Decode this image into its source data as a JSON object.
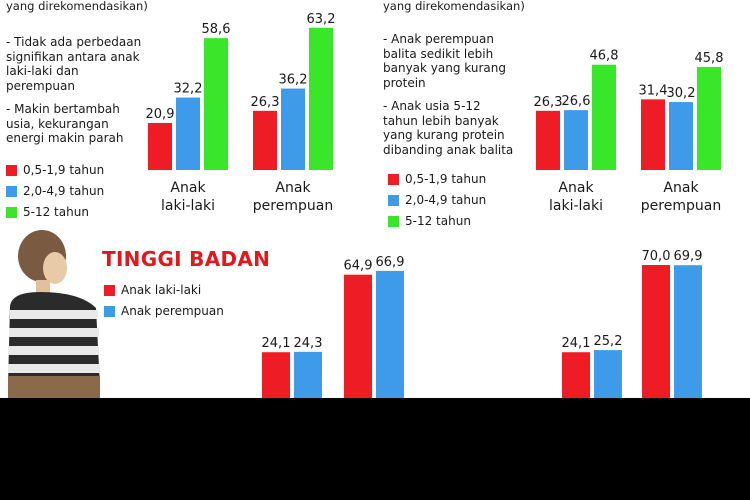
{
  "colors": {
    "red": "#ee1c24",
    "blue": "#3d9bea",
    "green": "#39e62a",
    "heading_red": "#e4161e"
  },
  "energy": {
    "subtitle_fragment": "yang direkomendasikan)",
    "notes": [
      "- Tidak ada perbedaan\nsignifikan antara anak\nlaki-laki dan\nperempuan",
      "- Makin bertambah\nusia, kekurangan\nenergi makin parah"
    ],
    "legend": [
      "0,5-1,9 tahun",
      "2,0-4,9 tahun",
      "5-12 tahun"
    ]
  },
  "protein": {
    "subtitle_fragment": "yang direkomendasikan)",
    "notes": [
      "- Anak perempuan\nbalita sedikit lebih\nbanyak yang kurang\nprotein",
      "- Anak usia 5-12\ntahun lebih banyak\nyang kurang protein\ndibanding anak balita"
    ],
    "legend": [
      "0,5-1,9 tahun",
      "2,0-4,9 tahun",
      "5-12 tahun"
    ]
  },
  "height": {
    "title": "TINGGI BADAN",
    "legend": [
      "Anak laki-laki",
      "Anak perempuan"
    ]
  },
  "chart_data": [
    {
      "id": "energy",
      "type": "bar",
      "categories": [
        "Anak\nlaki-laki",
        "Anak\nperempuan"
      ],
      "series": [
        {
          "name": "0,5-1,9 tahun",
          "values": [
            20.9,
            26.3
          ],
          "labels": [
            "20,9",
            "26,3"
          ]
        },
        {
          "name": "2,0-4,9 tahun",
          "values": [
            32.2,
            36.2
          ],
          "labels": [
            "32,2",
            "36,2"
          ]
        },
        {
          "name": "5-12 tahun",
          "values": [
            58.6,
            63.2
          ],
          "labels": [
            "58,6",
            "63,2"
          ]
        }
      ],
      "ylim": [
        0,
        70
      ]
    },
    {
      "id": "protein",
      "type": "bar",
      "categories": [
        "Anak\nlaki-laki",
        "Anak\nperempuan"
      ],
      "series": [
        {
          "name": "0,5-1,9 tahun",
          "values": [
            26.3,
            31.4
          ],
          "labels": [
            "26,3",
            "31,4"
          ]
        },
        {
          "name": "2,0-4,9 tahun",
          "values": [
            26.6,
            30.2
          ],
          "labels": [
            "26,6",
            "30,2"
          ]
        },
        {
          "name": "5-12 tahun",
          "values": [
            46.8,
            45.8
          ],
          "labels": [
            "46,8",
            "45,8"
          ]
        }
      ],
      "ylim": [
        0,
        70
      ]
    },
    {
      "id": "height",
      "type": "bar",
      "title": "TINGGI BADAN",
      "series": [
        {
          "name": "Anak laki-laki",
          "values": [
            24.1,
            64.9,
            24.1,
            70.0
          ],
          "labels": [
            "24,1",
            "64,9",
            "24,1",
            "70,0"
          ]
        },
        {
          "name": "Anak perempuan",
          "values": [
            24.3,
            66.9,
            25.2,
            69.9
          ],
          "labels": [
            "24,3",
            "66,9",
            "25,2",
            "69,9"
          ]
        }
      ],
      "ylim": [
        0,
        100
      ]
    }
  ]
}
